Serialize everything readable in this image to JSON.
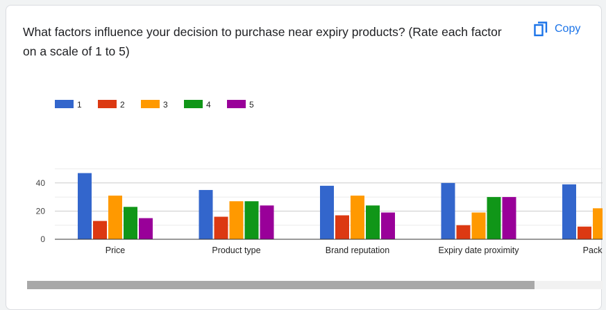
{
  "question": {
    "title": "What factors influence your decision to purchase near expiry products? (Rate each factor on a scale of 1 to 5)"
  },
  "copy_button": {
    "label": "Copy",
    "icon": "copy-icon"
  },
  "chart_data": {
    "type": "bar",
    "title": "",
    "xlabel": "",
    "ylabel": "",
    "ylim": [
      0,
      50
    ],
    "yticks": [
      0,
      20,
      40
    ],
    "grid": true,
    "legend_position": "top-left",
    "categories": [
      "Price",
      "Product type",
      "Brand reputation",
      "Expiry date proximity",
      "Packagir"
    ],
    "series": [
      {
        "name": "1",
        "color": "#3366cc",
        "values": [
          47,
          35,
          38,
          40,
          39
        ]
      },
      {
        "name": "2",
        "color": "#dc3912",
        "values": [
          13,
          16,
          17,
          10,
          9
        ]
      },
      {
        "name": "3",
        "color": "#ff9900",
        "values": [
          31,
          27,
          31,
          19,
          22
        ]
      },
      {
        "name": "4",
        "color": "#109618",
        "values": [
          23,
          27,
          24,
          30,
          null
        ]
      },
      {
        "name": "5",
        "color": "#990099",
        "values": [
          15,
          24,
          19,
          30,
          null
        ]
      }
    ]
  }
}
